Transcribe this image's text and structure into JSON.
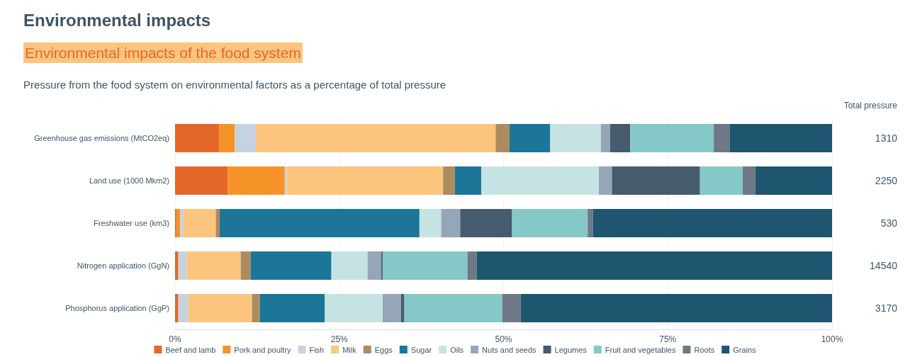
{
  "chart_data": {
    "type": "bar",
    "orientation": "horizontal",
    "stacked": true,
    "title": "Environmental impacts",
    "subtitle": "Environmental impacts of the food system",
    "annotations": [
      "Pressure from the food system on environmental factors as a percentage of total pressure",
      "Total pressure",
      "1310",
      "2250",
      "530",
      "14540",
      "3170"
    ],
    "categories": [
      "Greenhouse gas emissions (MtCO2eq)",
      "Land use (1000 Mkm2)",
      "Freshwater use (km3)",
      "Nitrogen application (GgN)",
      "Phosphorus application (GgP)"
    ],
    "xlim": [
      0,
      100
    ],
    "xticks": [
      {
        "value": 0,
        "label": "0%"
      },
      {
        "value": 25,
        "label": "25%"
      },
      {
        "value": 50,
        "label": "50%"
      },
      {
        "value": 75,
        "label": "75%"
      },
      {
        "value": 100,
        "label": "100%"
      }
    ],
    "grid": "x",
    "legend": "bottom",
    "series": [
      {
        "name": "Beef and lamb",
        "color": "#e4672a",
        "values": [
          6.7,
          8.0,
          0.2,
          0.5,
          0.5
        ]
      },
      {
        "name": "Pork and poultry",
        "color": "#f59328",
        "values": [
          2.4,
          8.7,
          0.6,
          0,
          0
        ]
      },
      {
        "name": "Fish",
        "color": "#c5d3e1",
        "values": [
          3.2,
          0.3,
          0.5,
          1.3,
          1.5
        ]
      },
      {
        "name": "Milk",
        "color": "#fcc57d",
        "values": [
          36.5,
          23.8,
          4.9,
          8.2,
          9.7
        ]
      },
      {
        "name": "Eggs",
        "color": "#ae8b5e",
        "values": [
          2.1,
          1.8,
          0.6,
          1.5,
          1.2
        ]
      },
      {
        "name": "Sugar",
        "color": "#1b7698",
        "values": [
          6.2,
          4.0,
          30.4,
          12.3,
          9.9
        ]
      },
      {
        "name": "Oils",
        "color": "#c6e3e3",
        "values": [
          7.7,
          17.9,
          3.3,
          5.5,
          8.8
        ]
      },
      {
        "name": "Nuts and seeds",
        "color": "#95a6b9",
        "values": [
          1.4,
          2.0,
          2.9,
          2.1,
          2.8
        ]
      },
      {
        "name": "Legumes",
        "color": "#465b6e",
        "values": [
          3.1,
          13.4,
          7.9,
          0.2,
          0.5
        ]
      },
      {
        "name": "Fruit and vegetables",
        "color": "#84c9c8",
        "values": [
          12.7,
          6.5,
          11.5,
          12.9,
          14.9
        ]
      },
      {
        "name": "Roots",
        "color": "#6e7985",
        "values": [
          2.4,
          1.9,
          0.8,
          1.4,
          2.8
        ]
      },
      {
        "name": "Grains",
        "color": "#1e556f",
        "values": [
          15.6,
          11.7,
          36.4,
          54.1,
          47.4
        ]
      }
    ]
  }
}
